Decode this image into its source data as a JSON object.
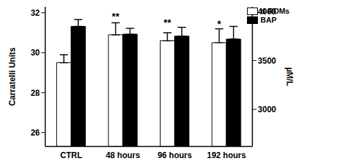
{
  "chart_data": {
    "type": "bar",
    "categories": [
      "CTRL",
      "48 hours",
      "96 hours",
      "192 hours"
    ],
    "y_label": "Carratelli Units",
    "y2_label": "µM/L",
    "series": [
      {
        "name": "d-ROMs",
        "color": "#ffffff",
        "values": [
          29.5,
          30.9,
          30.6,
          30.5
        ],
        "errors": [
          0.4,
          0.6,
          0.4,
          0.7
        ]
      },
      {
        "name": "BAP",
        "color": "#000000",
        "axis": "y2",
        "values": [
          3850,
          3770,
          3750,
          3720
        ],
        "errors": [
          70,
          60,
          90,
          130
        ]
      }
    ],
    "ylim": [
      25.3,
      32.3
    ],
    "yticks": [
      26,
      28,
      30,
      32
    ],
    "y2lim": [
      2620,
      4050
    ],
    "y2ticks": [
      3000,
      3500,
      4000
    ],
    "annotations": [
      {
        "category": "48 hours",
        "text": "**"
      },
      {
        "category": "96 hours",
        "text": "**"
      },
      {
        "category": "192 hours",
        "text": "*"
      }
    ],
    "legend": "upper right"
  }
}
